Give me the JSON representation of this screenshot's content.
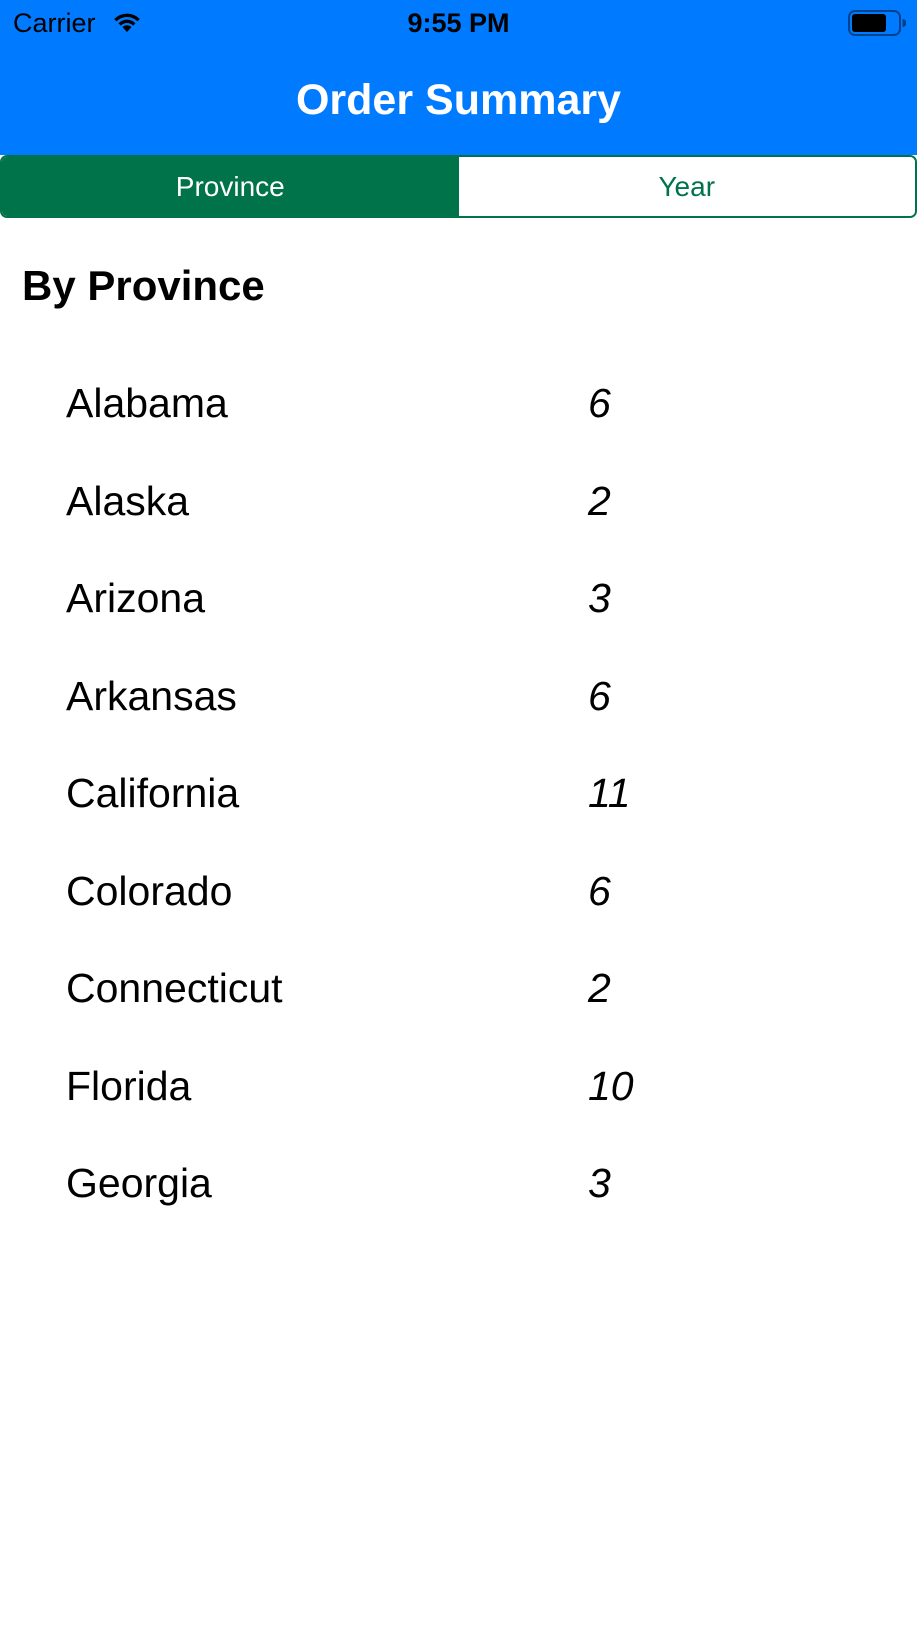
{
  "colors": {
    "nav_bar": "#007aff",
    "accent": "#00734a",
    "background": "#ffffff",
    "text": "#000000"
  },
  "status_bar": {
    "carrier": "Carrier",
    "time": "9:55 PM",
    "wifi_icon": "wifi-icon",
    "battery_icon": "battery-icon"
  },
  "nav": {
    "title": "Order Summary"
  },
  "segments": {
    "selected": "Province",
    "items": [
      {
        "label": "Province"
      },
      {
        "label": "Year"
      }
    ]
  },
  "section": {
    "title": "By Province"
  },
  "rows": [
    {
      "name": "Alabama",
      "count": "6"
    },
    {
      "name": "Alaska",
      "count": "2"
    },
    {
      "name": "Arizona",
      "count": "3"
    },
    {
      "name": "Arkansas",
      "count": "6"
    },
    {
      "name": "California",
      "count": "11"
    },
    {
      "name": "Colorado",
      "count": "6"
    },
    {
      "name": "Connecticut",
      "count": "2"
    },
    {
      "name": "Florida",
      "count": "10"
    },
    {
      "name": "Georgia",
      "count": "3"
    }
  ]
}
